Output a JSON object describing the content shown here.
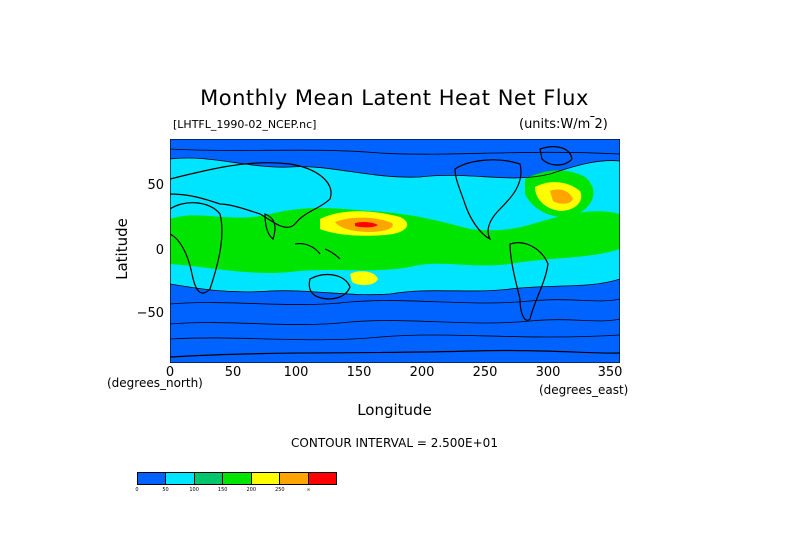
{
  "title": "Monthly Mean Latent Heat Net Flux",
  "file_label": "[LHTFL_1990-02_NCEP.nc]",
  "units_label": "(units:W/m^2)",
  "y_axis": {
    "label": "Latitude",
    "units": "(degrees_north)",
    "ticks": [
      "50",
      "0",
      "−50"
    ]
  },
  "x_axis": {
    "label": "Longitude",
    "units": "(degrees_east)",
    "ticks": [
      "0",
      "50",
      "100",
      "150",
      "200",
      "250",
      "300",
      "350"
    ]
  },
  "contour_interval": "CONTOUR INTERVAL = 2.500E+01",
  "colorbar": {
    "colors": [
      "#0063ff",
      "#00e5ff",
      "#00c66b",
      "#00e500",
      "#ffff00",
      "#ffa500",
      "#ff0000"
    ],
    "labels": [
      "0",
      "50",
      "100",
      "150",
      "200",
      "250",
      "∞"
    ]
  },
  "map_colors": {
    "ocean_low": "#0063ff",
    "cyan": "#00e5ff",
    "green": "#00e500",
    "yellow": "#ffff00",
    "orange": "#ffa500",
    "red": "#ff0000",
    "land_outline": "#000000"
  }
}
